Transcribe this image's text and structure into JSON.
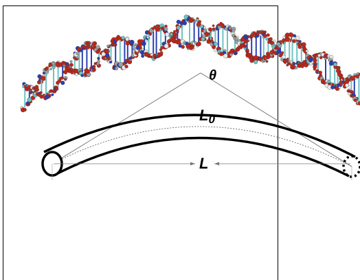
{
  "labels": {
    "theta": "θ",
    "contour_length": {
      "symbol": "L",
      "subscript": "0"
    },
    "end_to_end": "L"
  }
}
